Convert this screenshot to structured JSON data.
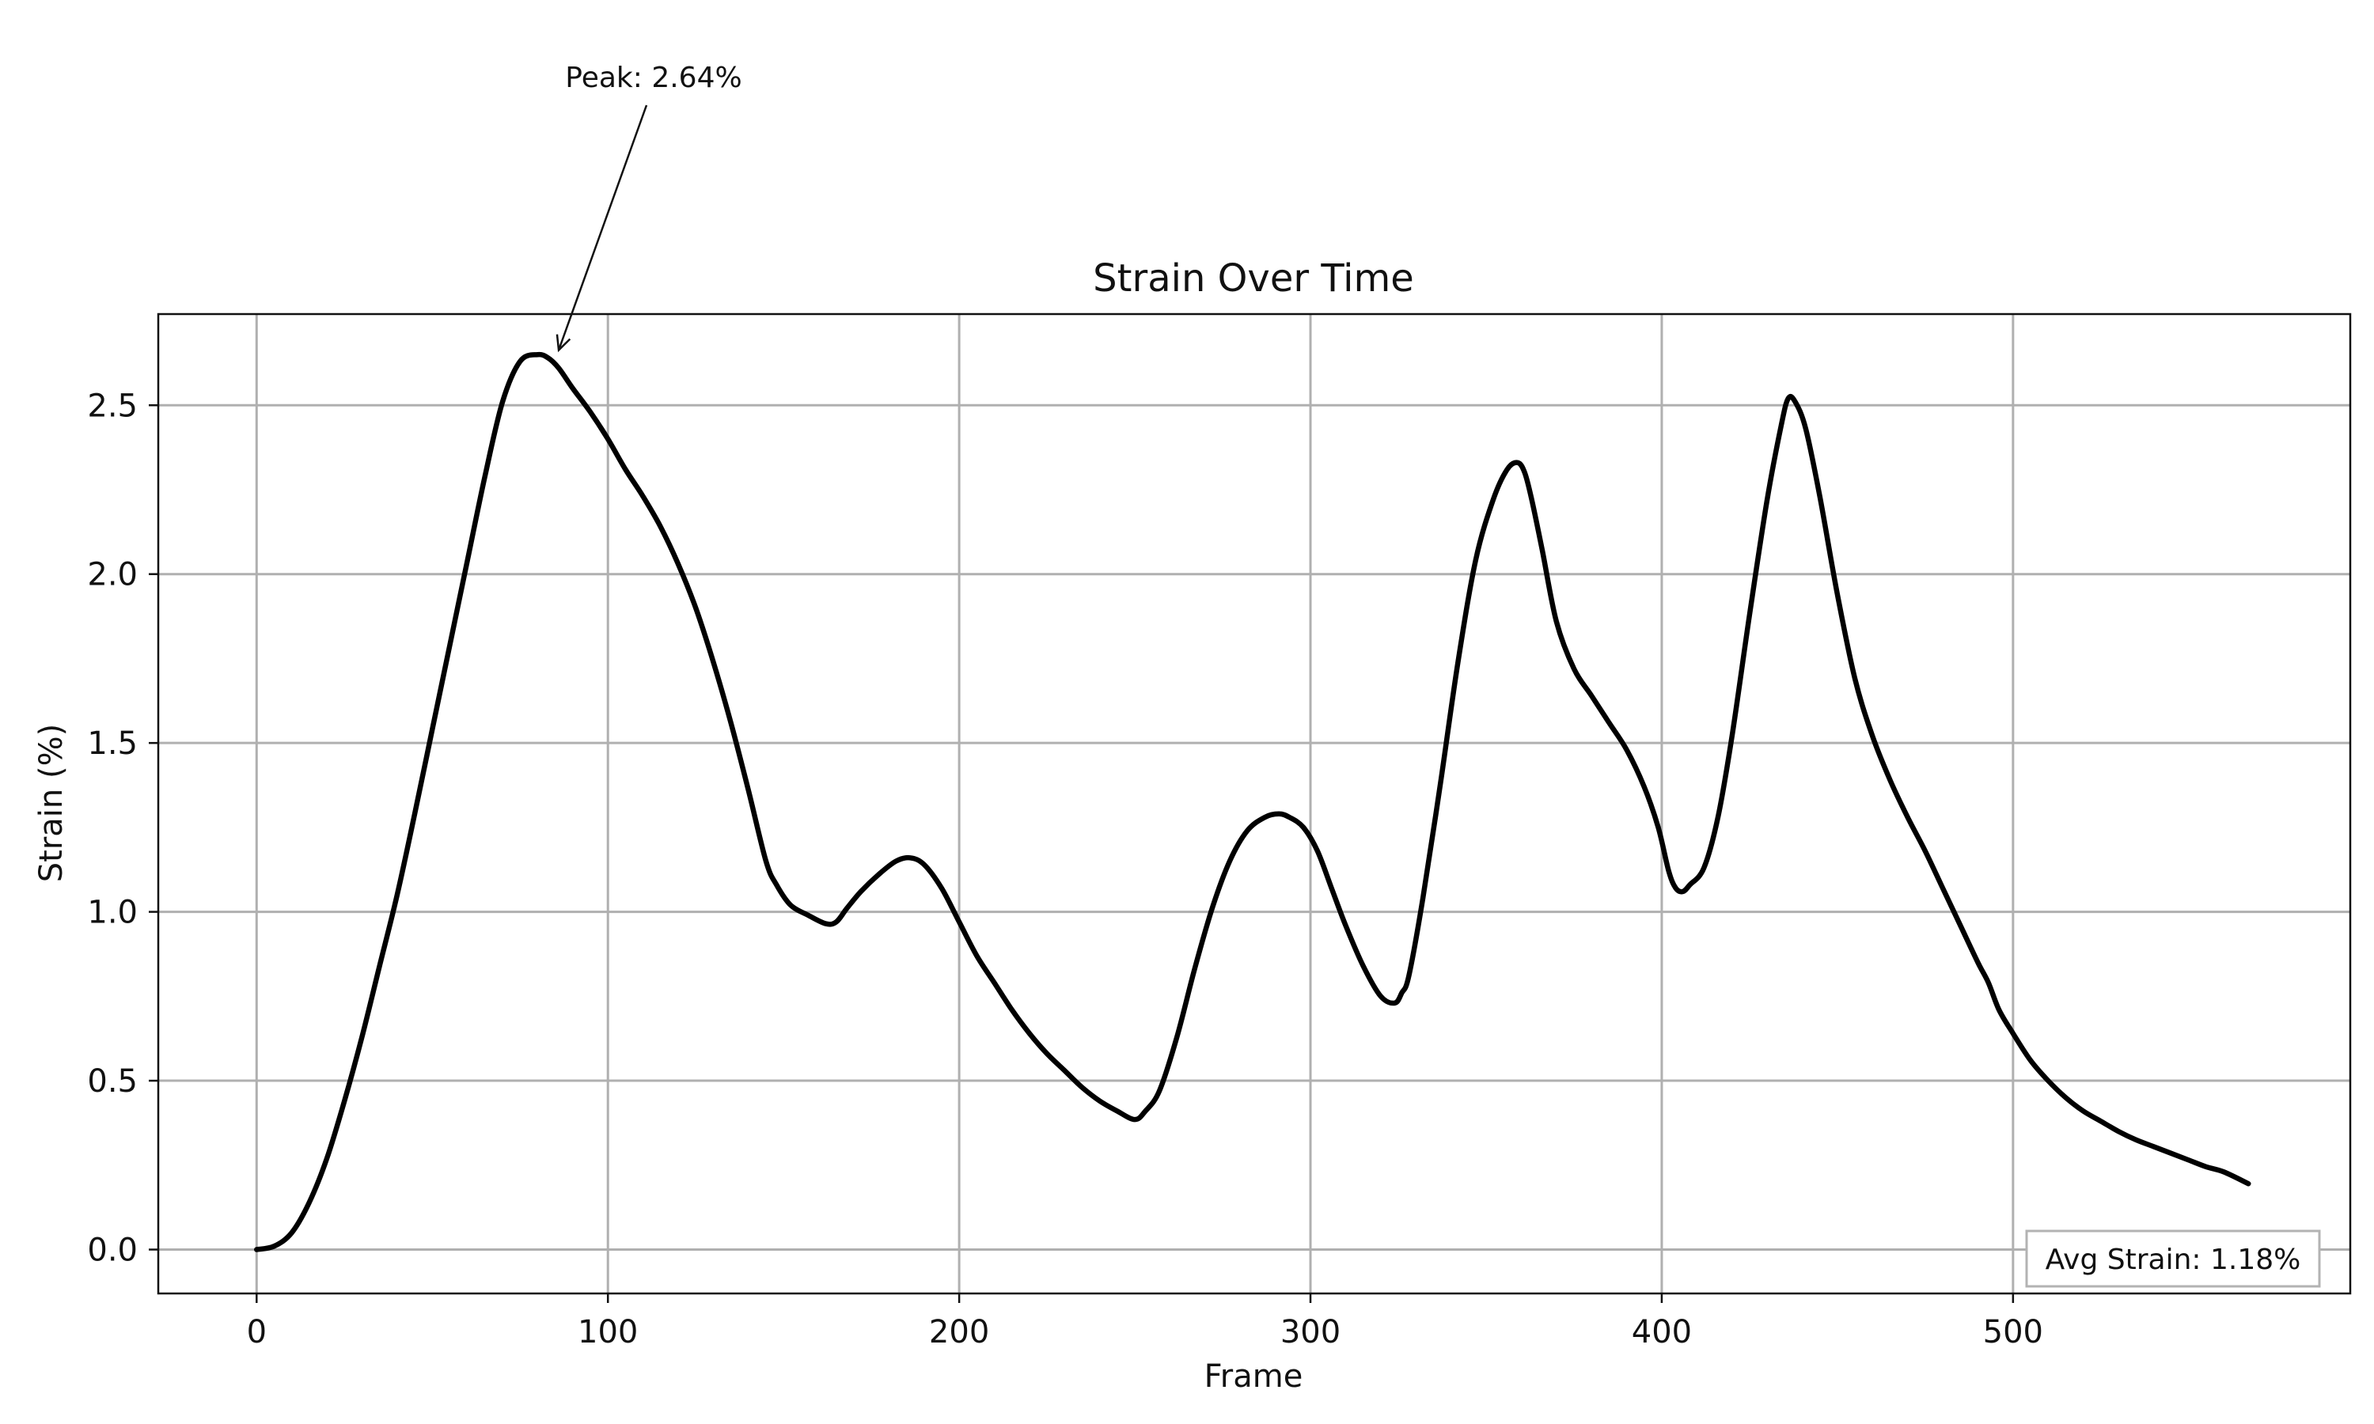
{
  "chart_data": {
    "type": "line",
    "title": "Strain Over Time",
    "xlabel": "Frame",
    "ylabel": "Strain (%)",
    "xlim": [
      -28,
      596
    ],
    "ylim": [
      -0.13,
      2.77
    ],
    "xticks": [
      0,
      100,
      200,
      300,
      400,
      500
    ],
    "yticks": [
      0.0,
      0.5,
      1.0,
      1.5,
      2.0,
      2.5
    ],
    "xtick_labels": [
      "0",
      "100",
      "200",
      "300",
      "400",
      "500"
    ],
    "ytick_labels": [
      "0.0",
      "0.5",
      "1.0",
      "1.5",
      "2.0",
      "2.5"
    ],
    "grid": true,
    "legend": false,
    "line_color": "#000000",
    "series": [
      {
        "x": [
          0,
          5,
          10,
          15,
          20,
          25,
          30,
          35,
          40,
          45,
          50,
          55,
          60,
          65,
          70,
          75,
          80,
          83,
          86,
          90,
          95,
          100,
          105,
          110,
          115,
          120,
          125,
          130,
          135,
          140,
          145,
          148,
          152,
          157,
          162,
          165,
          168,
          172,
          177,
          182,
          186,
          190,
          195,
          200,
          205,
          210,
          215,
          220,
          225,
          230,
          235,
          240,
          245,
          250,
          253,
          257,
          262,
          267,
          272,
          277,
          282,
          287,
          291,
          294,
          298,
          302,
          306,
          310,
          315,
          320,
          324,
          326,
          328,
          332,
          337,
          342,
          347,
          352,
          356,
          359,
          361,
          363,
          366,
          370,
          375,
          380,
          385,
          390,
          395,
          399,
          402,
          404,
          406,
          408,
          412,
          416,
          420,
          425,
          430,
          434,
          436,
          438,
          441,
          445,
          450,
          455,
          460,
          465,
          470,
          475,
          480,
          485,
          490,
          493,
          496,
          500,
          505,
          510,
          515,
          520,
          525,
          530,
          535,
          540,
          545,
          550,
          555,
          560,
          567
        ],
        "y": [
          0.0,
          0.01,
          0.05,
          0.14,
          0.27,
          0.44,
          0.63,
          0.84,
          1.05,
          1.29,
          1.54,
          1.79,
          2.04,
          2.29,
          2.51,
          2.63,
          2.65,
          2.64,
          2.61,
          2.55,
          2.48,
          2.4,
          2.31,
          2.23,
          2.14,
          2.03,
          1.9,
          1.74,
          1.56,
          1.36,
          1.15,
          1.08,
          1.02,
          0.99,
          0.965,
          0.97,
          1.01,
          1.06,
          1.11,
          1.15,
          1.16,
          1.14,
          1.07,
          0.97,
          0.87,
          0.79,
          0.71,
          0.64,
          0.58,
          0.53,
          0.48,
          0.44,
          0.41,
          0.385,
          0.41,
          0.47,
          0.63,
          0.83,
          1.01,
          1.15,
          1.24,
          1.28,
          1.29,
          1.28,
          1.25,
          1.18,
          1.07,
          0.96,
          0.84,
          0.75,
          0.73,
          0.76,
          0.81,
          1.04,
          1.38,
          1.74,
          2.04,
          2.22,
          2.31,
          2.33,
          2.3,
          2.22,
          2.07,
          1.86,
          1.72,
          1.64,
          1.56,
          1.48,
          1.37,
          1.25,
          1.12,
          1.07,
          1.06,
          1.08,
          1.13,
          1.28,
          1.52,
          1.88,
          2.22,
          2.44,
          2.52,
          2.51,
          2.43,
          2.23,
          1.94,
          1.69,
          1.52,
          1.39,
          1.28,
          1.18,
          1.07,
          0.96,
          0.85,
          0.79,
          0.71,
          0.64,
          0.56,
          0.5,
          0.45,
          0.41,
          0.38,
          0.35,
          0.325,
          0.305,
          0.285,
          0.265,
          0.245,
          0.23,
          0.195
        ]
      }
    ],
    "annotations": [
      {
        "text": "Peak: 2.64%",
        "x": 86,
        "y": 2.64,
        "type": "arrow"
      },
      {
        "text": "Avg Strain: 1.18%",
        "position": "bottom-right",
        "type": "box"
      }
    ]
  }
}
